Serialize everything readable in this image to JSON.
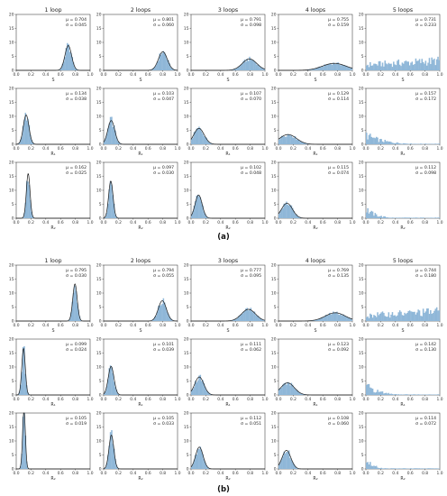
{
  "figure": {
    "captions": [
      "(a)",
      "(b)"
    ],
    "column_titles": [
      "1 loop",
      "2 loops",
      "3 loops",
      "4 loops",
      "5 loops"
    ],
    "row_xlabels": [
      "S",
      "R₁",
      "R₂"
    ]
  },
  "chart_data": {
    "type": "histogram-grid",
    "xlim": [
      0,
      1
    ],
    "ylim": [
      0,
      20
    ],
    "xticks": [
      "0.0",
      "0.2",
      "0.4",
      "0.6",
      "0.8",
      "1.0"
    ],
    "yticks": [
      "0",
      "5",
      "10",
      "15",
      "20"
    ],
    "panels": [
      {
        "caption": "(a)",
        "rows": [
          {
            "xlabel": "S",
            "cells": [
              {
                "title": "1 loop",
                "mu": "μ = 0.704",
                "sigma": "σ = 0.045",
                "mean": 0.704,
                "std": 0.045,
                "fit": true
              },
              {
                "title": "2 loops",
                "mu": "μ = 0.801",
                "sigma": "σ = 0.060",
                "mean": 0.801,
                "std": 0.06,
                "fit": true
              },
              {
                "title": "3 loops",
                "mu": "μ = 0.791",
                "sigma": "σ = 0.098",
                "mean": 0.791,
                "std": 0.098,
                "fit": true
              },
              {
                "title": "4 loops",
                "mu": "μ = 0.755",
                "sigma": "σ = 0.159",
                "mean": 0.755,
                "std": 0.159,
                "fit": true
              },
              {
                "title": "5 loops",
                "mu": "μ = 0.731",
                "sigma": "σ = 0.233",
                "mean": 0.731,
                "std": 0.233,
                "fit": false
              }
            ]
          },
          {
            "xlabel": "R₁",
            "cells": [
              {
                "mu": "μ = 0.134",
                "sigma": "σ = 0.038",
                "mean": 0.134,
                "std": 0.038,
                "fit": true
              },
              {
                "mu": "μ = 0.103",
                "sigma": "σ = 0.047",
                "mean": 0.103,
                "std": 0.047,
                "fit": true
              },
              {
                "mu": "μ = 0.107",
                "sigma": "σ = 0.070",
                "mean": 0.107,
                "std": 0.07,
                "fit": true
              },
              {
                "mu": "μ = 0.129",
                "sigma": "σ = 0.114",
                "mean": 0.129,
                "std": 0.114,
                "fit": true
              },
              {
                "mu": "μ = 0.157",
                "sigma": "σ = 0.172",
                "mean": 0.157,
                "std": 0.172,
                "fit": false
              }
            ]
          },
          {
            "xlabel": "R₂",
            "cells": [
              {
                "mu": "μ = 0.162",
                "sigma": "σ = 0.025",
                "mean": 0.162,
                "std": 0.025,
                "fit": true
              },
              {
                "mu": "μ = 0.097",
                "sigma": "σ = 0.030",
                "mean": 0.097,
                "std": 0.03,
                "fit": true
              },
              {
                "mu": "μ = 0.102",
                "sigma": "σ = 0.048",
                "mean": 0.102,
                "std": 0.048,
                "fit": true
              },
              {
                "mu": "μ = 0.115",
                "sigma": "σ = 0.074",
                "mean": 0.115,
                "std": 0.074,
                "fit": true
              },
              {
                "mu": "μ = 0.112",
                "sigma": "σ = 0.098",
                "mean": 0.112,
                "std": 0.098,
                "fit": false
              }
            ]
          }
        ]
      },
      {
        "caption": "(b)",
        "rows": [
          {
            "xlabel": "S",
            "cells": [
              {
                "title": "1 loop",
                "mu": "μ = 0.795",
                "sigma": "σ = 0.030",
                "mean": 0.795,
                "std": 0.03,
                "fit": true
              },
              {
                "title": "2 loops",
                "mu": "μ = 0.794",
                "sigma": "σ = 0.055",
                "mean": 0.794,
                "std": 0.055,
                "fit": true
              },
              {
                "title": "3 loops",
                "mu": "μ = 0.777",
                "sigma": "σ = 0.095",
                "mean": 0.777,
                "std": 0.095,
                "fit": true
              },
              {
                "title": "4 loops",
                "mu": "μ = 0.769",
                "sigma": "σ = 0.135",
                "mean": 0.769,
                "std": 0.135,
                "fit": true
              },
              {
                "title": "5 loops",
                "mu": "μ = 0.744",
                "sigma": "σ = 0.180",
                "mean": 0.744,
                "std": 0.18,
                "fit": false
              }
            ]
          },
          {
            "xlabel": "R₁",
            "cells": [
              {
                "mu": "μ = 0.099",
                "sigma": "σ = 0.024",
                "mean": 0.099,
                "std": 0.024,
                "fit": true
              },
              {
                "mu": "μ = 0.101",
                "sigma": "σ = 0.039",
                "mean": 0.101,
                "std": 0.039,
                "fit": true
              },
              {
                "mu": "μ = 0.111",
                "sigma": "σ = 0.062",
                "mean": 0.111,
                "std": 0.062,
                "fit": true
              },
              {
                "mu": "μ = 0.123",
                "sigma": "σ = 0.092",
                "mean": 0.123,
                "std": 0.092,
                "fit": true
              },
              {
                "mu": "μ = 0.142",
                "sigma": "σ = 0.130",
                "mean": 0.142,
                "std": 0.13,
                "fit": false
              }
            ]
          },
          {
            "xlabel": "R₂",
            "cells": [
              {
                "mu": "μ = 0.105",
                "sigma": "σ = 0.019",
                "mean": 0.105,
                "std": 0.019,
                "fit": true
              },
              {
                "mu": "μ = 0.105",
                "sigma": "σ = 0.033",
                "mean": 0.105,
                "std": 0.033,
                "fit": true
              },
              {
                "mu": "μ = 0.112",
                "sigma": "σ = 0.051",
                "mean": 0.112,
                "std": 0.051,
                "fit": true
              },
              {
                "mu": "μ = 0.108",
                "sigma": "σ = 0.060",
                "mean": 0.108,
                "std": 0.06,
                "fit": true
              },
              {
                "mu": "μ = 0.114",
                "sigma": "σ = 0.072",
                "mean": 0.114,
                "std": 0.072,
                "fit": false
              }
            ]
          }
        ]
      }
    ]
  }
}
